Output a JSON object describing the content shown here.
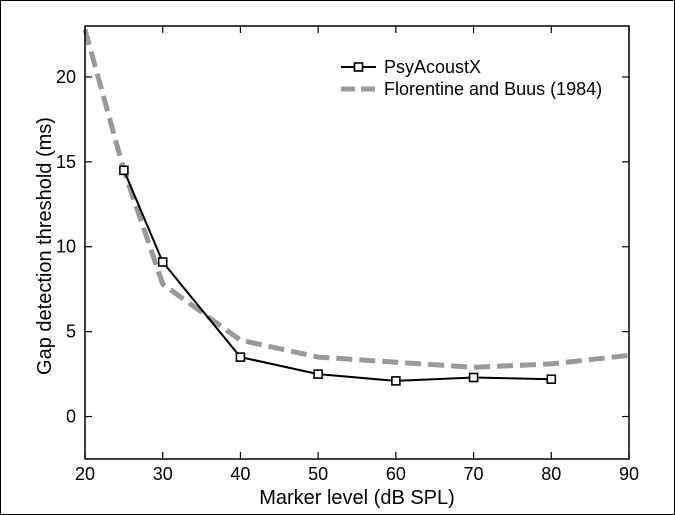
{
  "chart_data": {
    "type": "line",
    "title": "",
    "xlabel": "Marker level (dB SPL)",
    "ylabel": "Gap detection threshold (ms)",
    "xlim": [
      20,
      90
    ],
    "ylim": [
      -2.5,
      23
    ],
    "xticks": [
      "20",
      "30",
      "40",
      "50",
      "60",
      "70",
      "80",
      "90"
    ],
    "yticks": [
      "0",
      "5",
      "10",
      "15",
      "20"
    ],
    "grid": false,
    "legend_position": "top-right",
    "series": [
      {
        "name": "PsyAcoustX",
        "color": "#000000",
        "line_style": "solid",
        "marker": "square",
        "x": [
          25,
          30,
          40,
          50,
          60,
          70,
          80
        ],
        "y": [
          14.5,
          9.1,
          3.5,
          2.5,
          2.1,
          2.3,
          2.2
        ]
      },
      {
        "name": "Florentine and Buus (1984)",
        "color": "#999999",
        "line_style": "dashed",
        "marker": "none",
        "x": [
          20,
          25,
          30,
          40,
          50,
          60,
          70,
          80,
          90
        ],
        "y": [
          22.8,
          14.5,
          7.8,
          4.5,
          3.5,
          3.2,
          2.9,
          3.1,
          3.6
        ]
      }
    ]
  }
}
